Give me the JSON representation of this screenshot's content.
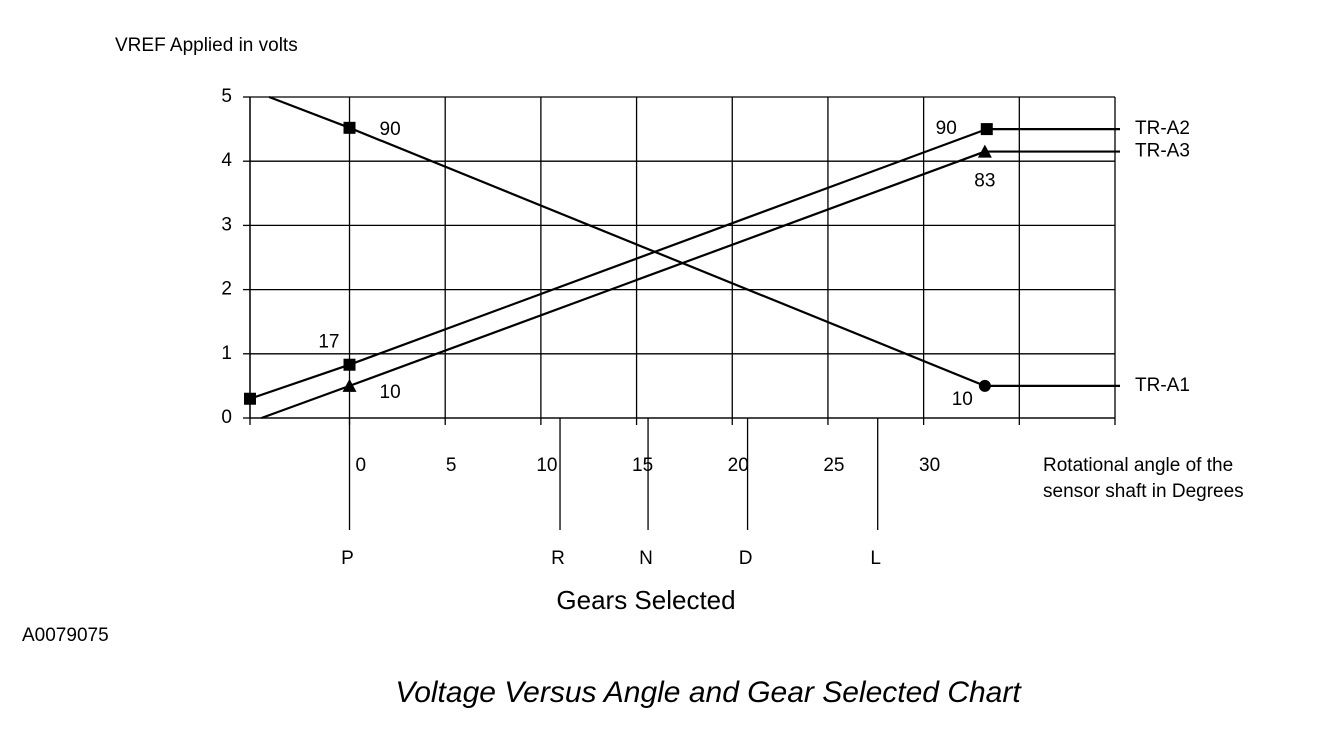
{
  "chart_data": {
    "type": "line",
    "y_label": "VREF Applied in volts",
    "x_label_lines": [
      "Rotational angle of the",
      "sensor shaft in Degrees"
    ],
    "ylim": [
      0,
      5
    ],
    "yticks": [
      0,
      1,
      2,
      3,
      4,
      5
    ],
    "xlim": [
      -5.2,
      40
    ],
    "xticks": [
      0,
      5,
      10,
      15,
      20,
      25,
      30
    ],
    "x_grid": [
      -5.2,
      0,
      5,
      10,
      15,
      20,
      25,
      30,
      35,
      40
    ],
    "grid": true,
    "series": [
      {
        "name": "TR-A1",
        "color": "#000000",
        "x": [
          -4.2,
          0,
          33.2
        ],
        "values": [
          5,
          4.52,
          0.5
        ],
        "markers": [
          null,
          "square",
          "circle"
        ],
        "point_labels": [
          null,
          "90",
          "10"
        ],
        "label_sides": [
          null,
          "right",
          "below-left"
        ]
      },
      {
        "name": "TR-A2",
        "color": "#000000",
        "x": [
          -5.2,
          0,
          33.3
        ],
        "values": [
          0.3,
          0.83,
          4.5
        ],
        "markers": [
          "square",
          "square",
          "square"
        ],
        "point_labels": [
          null,
          "17",
          "90"
        ],
        "label_sides": [
          null,
          "above-left",
          "left"
        ]
      },
      {
        "name": "TR-A3",
        "color": "#000000",
        "x": [
          -4.6,
          0,
          33.2
        ],
        "values": [
          0,
          0.5,
          4.15
        ],
        "markers": [
          null,
          "triangle",
          "triangle"
        ],
        "point_labels": [
          null,
          "10",
          "83"
        ],
        "label_sides": [
          null,
          "below-right",
          "below"
        ]
      }
    ],
    "gears": {
      "title": "Gears Selected",
      "labels": [
        "P",
        "R",
        "N",
        "D",
        "L"
      ],
      "positions": [
        0,
        11,
        15.6,
        20.8,
        27.6
      ]
    },
    "figure_id": "A0079075",
    "caption": "Voltage Versus Angle and Gear Selected Chart"
  }
}
